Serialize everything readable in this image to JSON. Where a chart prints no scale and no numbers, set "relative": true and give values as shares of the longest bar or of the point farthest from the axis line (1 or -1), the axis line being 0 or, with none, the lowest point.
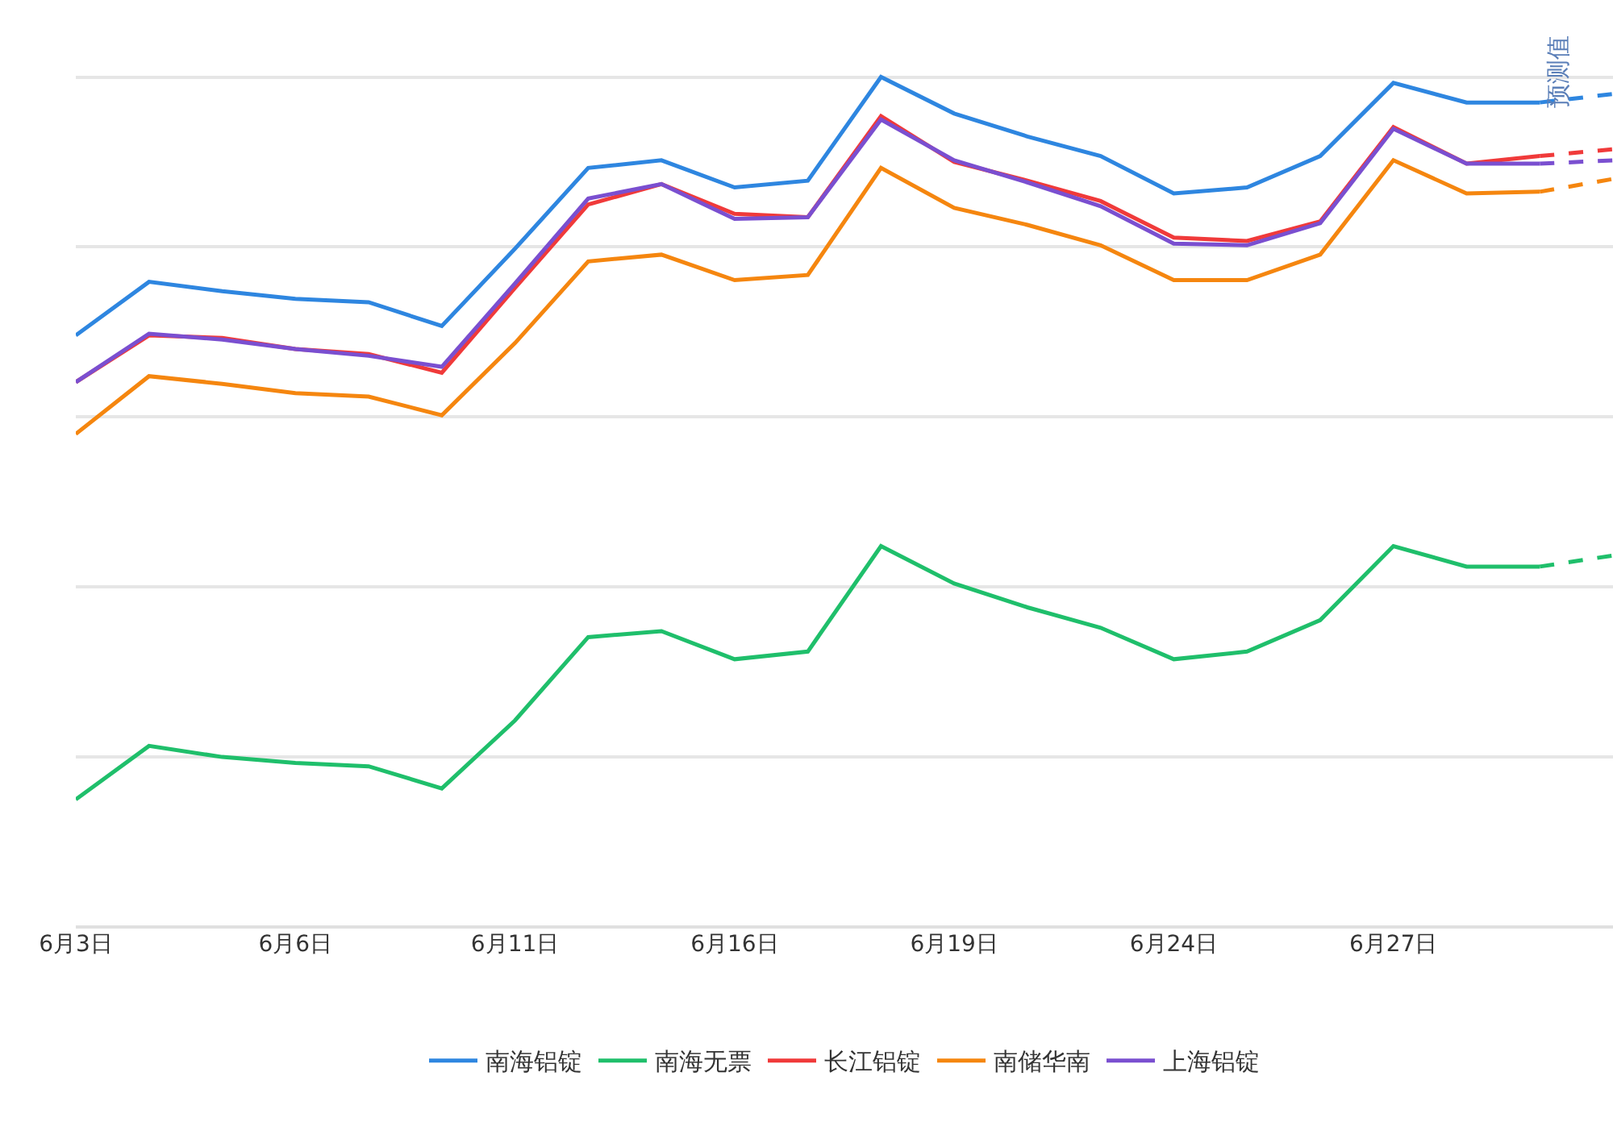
{
  "chart_data": {
    "type": "line",
    "relative": true,
    "categories": [
      "6月3日",
      null,
      null,
      "6月6日",
      null,
      null,
      "6月11日",
      null,
      null,
      "6月16日",
      null,
      null,
      "6月19日",
      null,
      null,
      "6月24日",
      null,
      null,
      "6月27日",
      null,
      null,
      null
    ],
    "series": [
      {
        "name": "南海铝锭",
        "color": "#2e86e0",
        "values": [
          0.696,
          0.759,
          0.748,
          0.739,
          0.735,
          0.707,
          0.798,
          0.893,
          0.902,
          0.87,
          0.878,
          1.0,
          0.957,
          0.93,
          0.907,
          0.863,
          0.87,
          0.907,
          0.993,
          0.97,
          0.97,
          null
        ]
      },
      {
        "name": "南海无票",
        "color": "#1fbf6b",
        "values": [
          0.15,
          0.213,
          0.2,
          0.193,
          0.189,
          0.163,
          0.243,
          0.341,
          0.348,
          0.315,
          0.324,
          0.448,
          0.404,
          0.376,
          0.352,
          0.315,
          0.324,
          0.361,
          0.448,
          0.424,
          0.424,
          null
        ]
      },
      {
        "name": "长江铝锭",
        "color": "#f03a3a",
        "values": [
          0.641,
          0.696,
          0.693,
          0.68,
          0.674,
          0.652,
          0.752,
          0.85,
          0.874,
          0.839,
          0.835,
          0.954,
          0.9,
          0.878,
          0.854,
          0.811,
          0.807,
          0.83,
          0.941,
          0.898,
          0.907,
          null
        ]
      },
      {
        "name": "南储华南",
        "color": "#f5860f",
        "values": [
          0.58,
          0.648,
          0.639,
          0.628,
          0.624,
          0.602,
          0.687,
          0.783,
          0.791,
          0.761,
          0.767,
          0.893,
          0.846,
          0.826,
          0.802,
          0.761,
          0.761,
          0.791,
          0.902,
          0.863,
          0.865,
          null
        ]
      },
      {
        "name": "上海铝锭",
        "color": "#7a4fd0",
        "values": [
          0.641,
          0.698,
          0.691,
          0.68,
          0.672,
          0.659,
          0.757,
          0.857,
          0.874,
          0.833,
          0.835,
          0.95,
          0.902,
          0.876,
          0.848,
          0.804,
          0.802,
          0.828,
          0.939,
          0.898,
          0.898,
          null
        ]
      },
      {
        "color": "#2e86e0",
        "line_style": "dashed",
        "values": [
          null,
          null,
          null,
          null,
          null,
          null,
          null,
          null,
          null,
          null,
          null,
          null,
          null,
          null,
          null,
          null,
          null,
          null,
          null,
          null,
          0.97,
          0.98
        ]
      },
      {
        "color": "#1fbf6b",
        "line_style": "dashed",
        "values": [
          null,
          null,
          null,
          null,
          null,
          null,
          null,
          null,
          null,
          null,
          null,
          null,
          null,
          null,
          null,
          null,
          null,
          null,
          null,
          null,
          0.424,
          0.437
        ]
      },
      {
        "color": "#f03a3a",
        "line_style": "dashed",
        "values": [
          null,
          null,
          null,
          null,
          null,
          null,
          null,
          null,
          null,
          null,
          null,
          null,
          null,
          null,
          null,
          null,
          null,
          null,
          null,
          null,
          0.907,
          0.915
        ]
      },
      {
        "color": "#f5860f",
        "line_style": "dashed",
        "values": [
          null,
          null,
          null,
          null,
          null,
          null,
          null,
          null,
          null,
          null,
          null,
          null,
          null,
          null,
          null,
          null,
          null,
          null,
          null,
          null,
          0.865,
          0.88
        ]
      },
      {
        "color": "#7a4fd0",
        "line_style": "dashed",
        "values": [
          null,
          null,
          null,
          null,
          null,
          null,
          null,
          null,
          null,
          null,
          null,
          null,
          null,
          null,
          null,
          null,
          null,
          null,
          null,
          null,
          0.898,
          0.902
        ]
      }
    ],
    "annotations": [
      "预测值"
    ],
    "grid": "y",
    "legend": "bottom",
    "tick_labels": "x",
    "marker": "none",
    "line_style": "solid"
  }
}
